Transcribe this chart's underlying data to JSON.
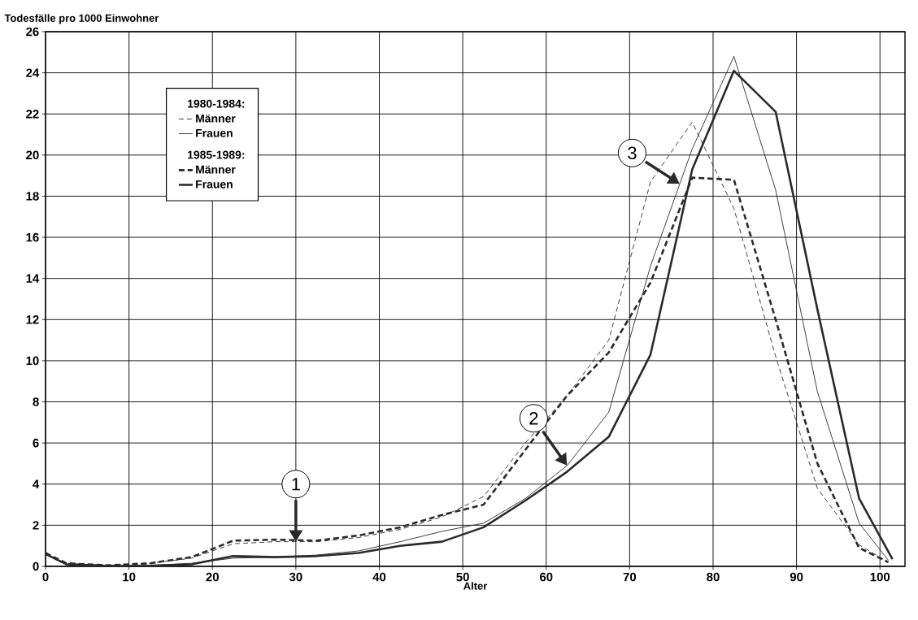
{
  "chart_data": {
    "type": "line",
    "ylabel": "Todesfälle pro 1000 Einwohner",
    "xlabel": "Alter",
    "xlim": [
      0,
      103
    ],
    "ylim": [
      0,
      26
    ],
    "xticks": [
      0,
      10,
      20,
      30,
      40,
      50,
      60,
      70,
      80,
      90,
      100
    ],
    "yticks": [
      0,
      2,
      4,
      6,
      8,
      10,
      12,
      14,
      16,
      18,
      20,
      22,
      24,
      26
    ],
    "grid": true,
    "legend": "top left",
    "marker": "none",
    "annotations": [
      "1980-1984:",
      "1985-1989:",
      {
        "text": "1",
        "x": 30,
        "y": 1.2
      },
      {
        "text": "2",
        "x": 62.5,
        "y": 4.9
      },
      {
        "text": "3",
        "x": 76,
        "y": 18.6
      }
    ],
    "series": [
      {
        "name": "Männer",
        "color": "#2a2a2a",
        "line_style": "dashed",
        "x": [
          0,
          2.5,
          7.5,
          12.5,
          17.5,
          22.5,
          27.5,
          32.5,
          37.5,
          42.5,
          47.5,
          52.5,
          57.5,
          62.5,
          67.5,
          72.5,
          77.5,
          82.5,
          87.5,
          92.5,
          97.5,
          101
        ],
        "values": [
          0.6,
          0.15,
          0.05,
          0.15,
          0.4,
          1.1,
          1.2,
          1.2,
          1.4,
          1.8,
          2.4,
          3.4,
          6.0,
          8.3,
          11.0,
          18.7,
          21.6,
          17.4,
          10.2,
          3.8,
          1.05,
          0.2
        ]
      },
      {
        "name": "Frauen",
        "color": "#2a2a2a",
        "line_style": "solid",
        "x": [
          0,
          2.5,
          7.5,
          12.5,
          17.5,
          22.5,
          27.5,
          32.5,
          37.5,
          42.5,
          47.5,
          52.5,
          57.5,
          62.5,
          67.5,
          72.5,
          77.5,
          82.5,
          87.5,
          92.5,
          97.5,
          101
        ],
        "values": [
          0.6,
          0.1,
          0.03,
          0.05,
          0.15,
          0.4,
          0.45,
          0.55,
          0.75,
          1.2,
          1.7,
          2.1,
          3.3,
          4.9,
          7.5,
          14.6,
          20.3,
          24.8,
          18.3,
          8.5,
          2.1,
          0.3
        ]
      },
      {
        "name": "Männer",
        "color": "#2a2a2a",
        "line_style": "dashed",
        "x": [
          0,
          2.5,
          7.5,
          12.5,
          17.5,
          22.5,
          27.5,
          32.5,
          37.5,
          42.5,
          47.5,
          52.5,
          58.5,
          62.5,
          67.5,
          72.5,
          77.5,
          82.5,
          87.5,
          92.5,
          97.5,
          101
        ],
        "values": [
          0.65,
          0.15,
          0.05,
          0.15,
          0.45,
          1.25,
          1.3,
          1.25,
          1.5,
          1.9,
          2.5,
          3.0,
          6.2,
          8.3,
          10.4,
          13.8,
          18.9,
          18.8,
          12.0,
          5.0,
          0.9,
          0.2
        ]
      },
      {
        "name": "Frauen",
        "color": "#2a2a2a",
        "line_style": "solid",
        "x": [
          0,
          2.5,
          7.5,
          12.5,
          17.5,
          22.5,
          27.5,
          32.5,
          37.5,
          42.5,
          47.5,
          52.5,
          57.5,
          62.5,
          67.5,
          72.5,
          77.5,
          82.5,
          87.5,
          92.5,
          97.5,
          101.5
        ],
        "values": [
          0.6,
          0.1,
          0.02,
          0.03,
          0.1,
          0.5,
          0.45,
          0.5,
          0.65,
          1.0,
          1.2,
          1.9,
          3.2,
          4.6,
          6.3,
          10.3,
          19.3,
          24.1,
          22.1,
          12.5,
          3.3,
          0.35
        ]
      }
    ]
  }
}
